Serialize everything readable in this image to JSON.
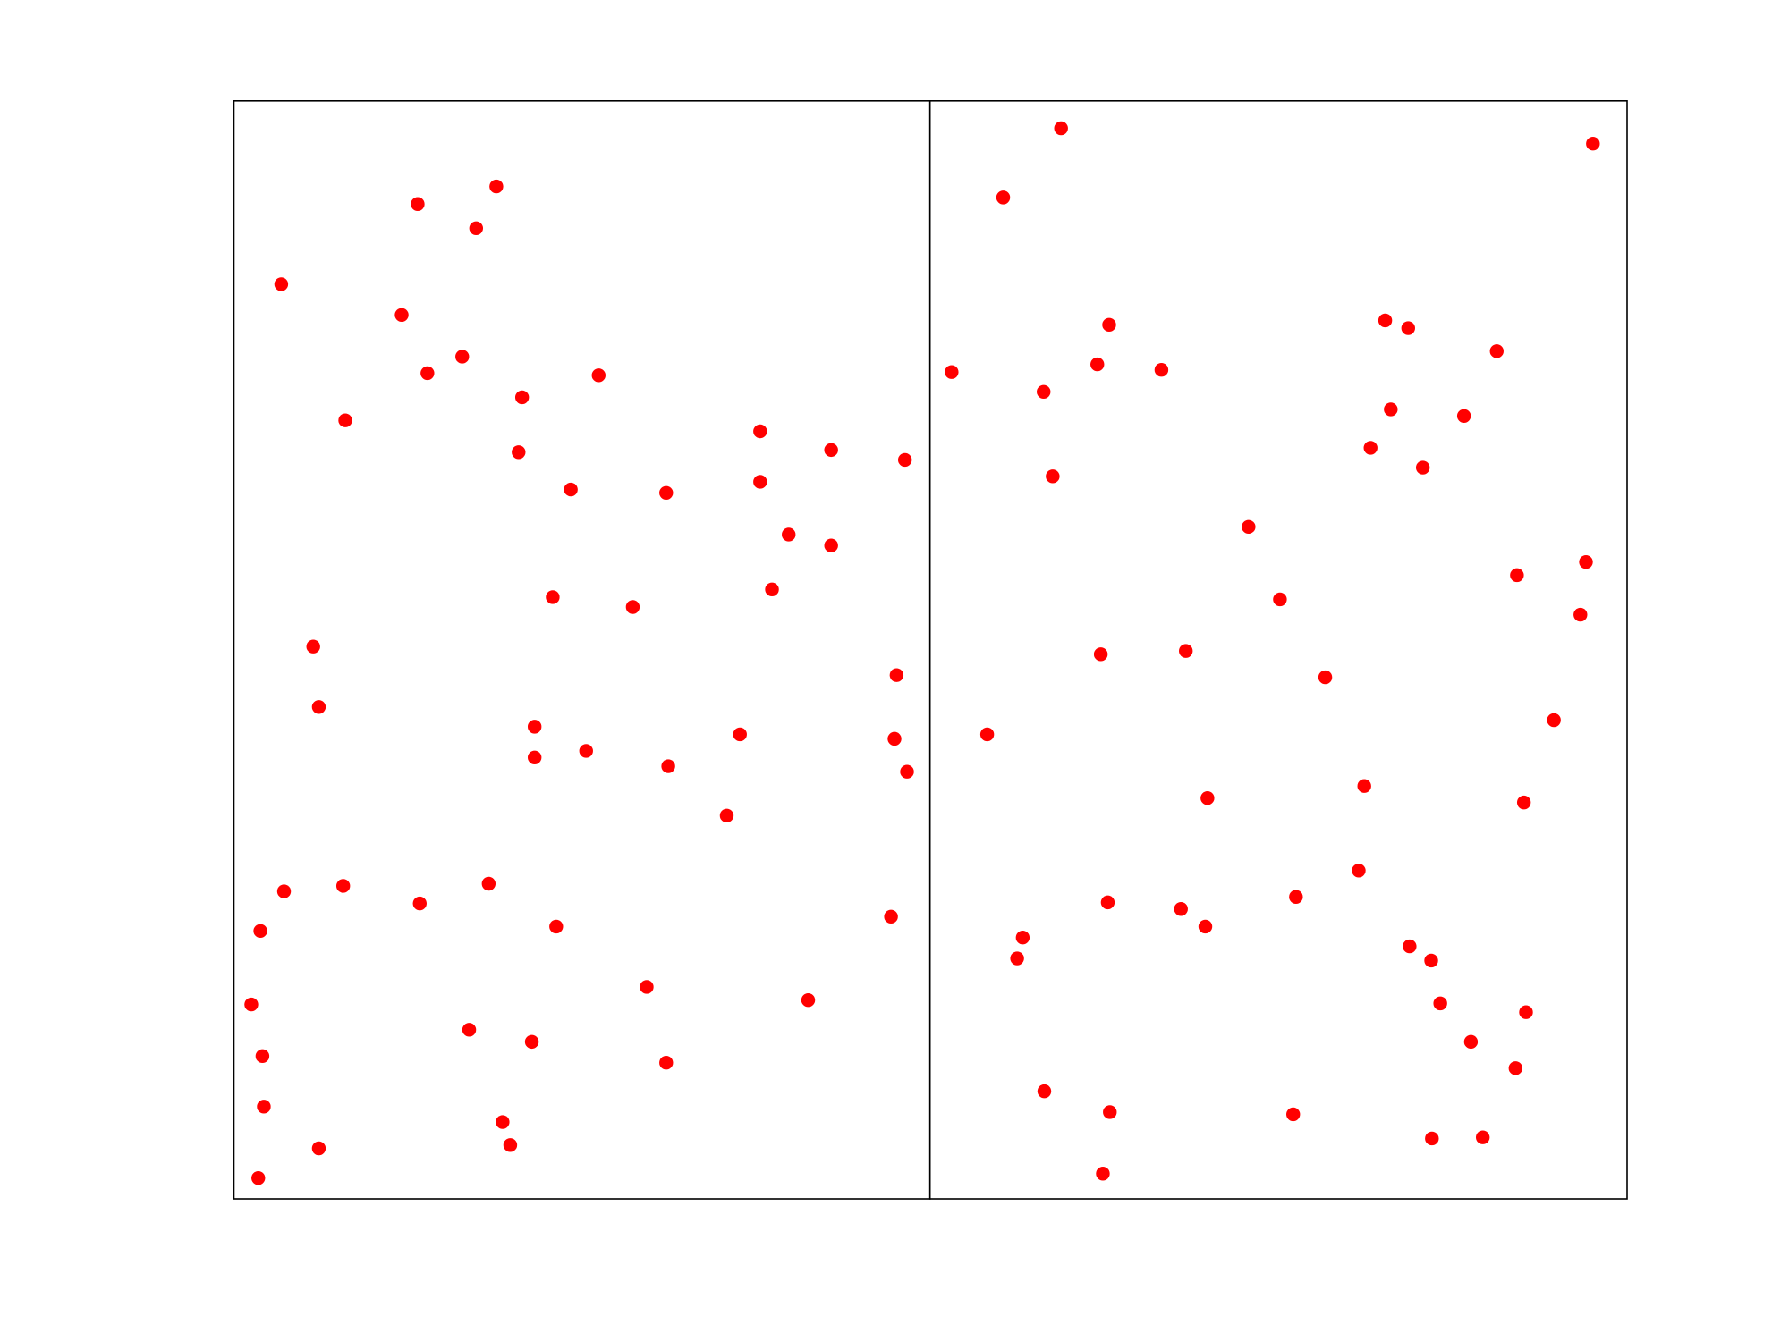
{
  "chart_data": [
    {
      "type": "scatter",
      "color": "#ff0000",
      "xlim": [
        0,
        100
      ],
      "ylim": [
        0,
        100
      ],
      "x": [
        26.4,
        37.7,
        34.8,
        6.8,
        24.1,
        32.8,
        27.8,
        52.4,
        41.4,
        16.0,
        75.6,
        85.8,
        40.9,
        96.4,
        48.4,
        62.1,
        75.6,
        79.7,
        85.8,
        77.3,
        45.8,
        57.3,
        11.4,
        95.2,
        12.2,
        43.2,
        72.7,
        43.2,
        50.6,
        94.9,
        96.7,
        62.4,
        70.8,
        7.2,
        15.7,
        26.7,
        36.6,
        3.8,
        46.3,
        94.4,
        59.3,
        82.5,
        2.5,
        33.8,
        42.8,
        4.1,
        62.1,
        4.3,
        38.6,
        39.7,
        12.2,
        3.5
      ],
      "values": [
        90.6,
        92.2,
        88.4,
        83.3,
        80.5,
        76.7,
        75.2,
        75.0,
        73.0,
        70.9,
        69.9,
        68.2,
        68.0,
        67.3,
        64.6,
        64.3,
        65.3,
        60.5,
        59.5,
        55.5,
        54.8,
        53.9,
        50.3,
        47.7,
        44.8,
        43.0,
        42.3,
        40.2,
        40.8,
        41.9,
        38.9,
        39.4,
        34.9,
        28.0,
        28.5,
        26.9,
        28.7,
        24.4,
        24.8,
        25.7,
        19.3,
        18.1,
        17.7,
        15.4,
        14.3,
        13.0,
        12.4,
        8.4,
        7.0,
        4.9,
        4.6,
        1.9
      ]
    },
    {
      "type": "scatter",
      "color": "#ff0000",
      "xlim": [
        0,
        100
      ],
      "ylim": [
        0,
        100
      ],
      "x": [
        18.8,
        95.1,
        10.5,
        25.7,
        65.3,
        68.6,
        81.3,
        3.1,
        24.0,
        33.2,
        16.3,
        66.1,
        76.6,
        63.2,
        70.7,
        17.6,
        45.7,
        94.1,
        84.2,
        50.2,
        93.3,
        24.5,
        36.7,
        56.7,
        89.5,
        8.2,
        62.3,
        39.8,
        85.2,
        61.5,
        25.5,
        52.5,
        36.0,
        39.5,
        13.3,
        12.5,
        68.8,
        71.9,
        73.2,
        85.5,
        77.6,
        84.0,
        16.4,
        25.8,
        52.1,
        72.0,
        79.3,
        24.8
      ],
      "values": [
        97.5,
        96.1,
        91.2,
        79.6,
        80.0,
        79.3,
        77.2,
        75.3,
        76.0,
        75.5,
        73.5,
        71.9,
        71.3,
        68.4,
        66.6,
        65.8,
        61.2,
        58.0,
        56.8,
        54.6,
        53.2,
        49.6,
        49.9,
        47.5,
        43.6,
        42.3,
        37.6,
        36.5,
        36.1,
        29.9,
        27.0,
        27.5,
        26.4,
        24.8,
        23.8,
        21.9,
        23.0,
        21.7,
        17.8,
        17.0,
        14.3,
        11.9,
        9.8,
        7.9,
        7.7,
        5.5,
        5.6,
        2.3
      ]
    }
  ]
}
